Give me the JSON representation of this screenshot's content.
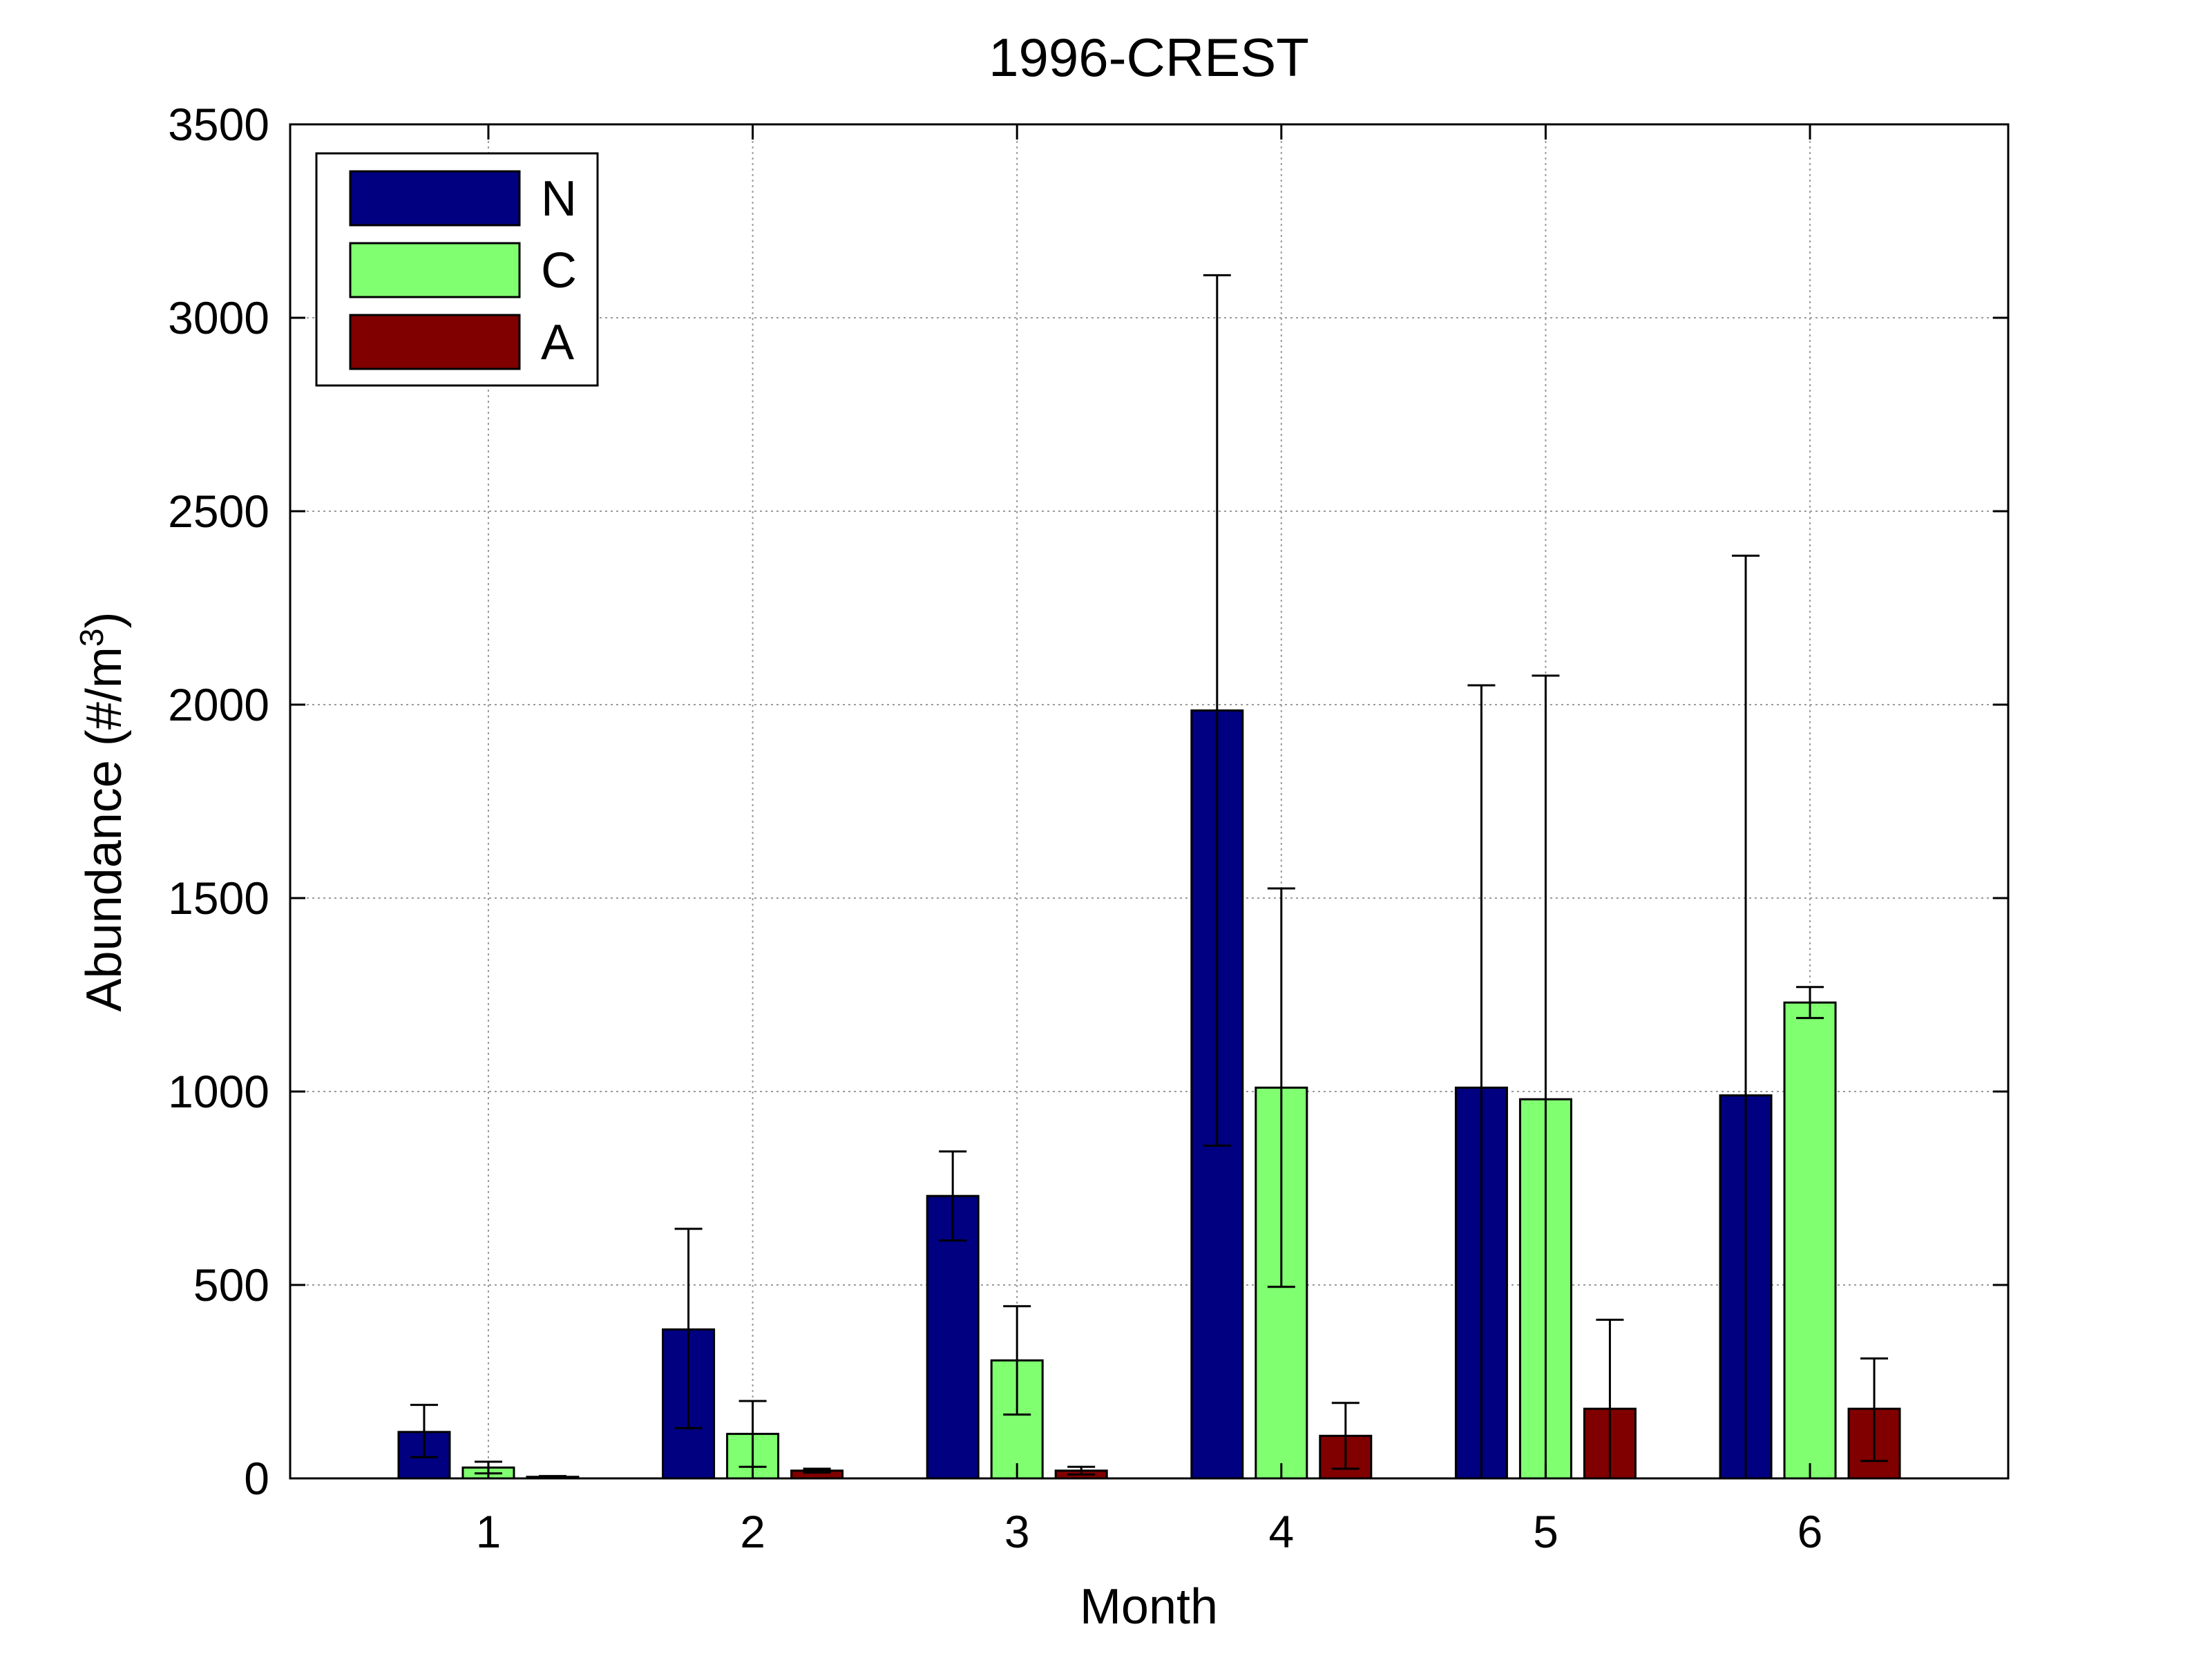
{
  "chart_data": {
    "type": "bar",
    "title": "1996-CREST",
    "xlabel": "Month",
    "ylabel_main": "Abundance (#/m",
    "ylabel_sup": "3",
    "ylabel_close": ")",
    "categories": [
      "1",
      "2",
      "3",
      "4",
      "5",
      "6"
    ],
    "ylim": [
      0,
      3500
    ],
    "yticks": [
      0,
      500,
      1000,
      1500,
      2000,
      2500,
      3000,
      3500
    ],
    "grid": true,
    "legend_position": "top-left",
    "series": [
      {
        "name": "N",
        "color": "#000080",
        "values": [
          120,
          385,
          730,
          1985,
          1010,
          990
        ],
        "error_low": [
          55,
          130,
          615,
          860,
          0,
          0
        ],
        "error_high": [
          190,
          645,
          845,
          3110,
          2050,
          2385
        ]
      },
      {
        "name": "C",
        "color": "#80ff70",
        "values": [
          28,
          115,
          305,
          1010,
          980,
          1230
        ],
        "error_low": [
          13,
          30,
          165,
          495,
          0,
          1190
        ],
        "error_high": [
          43,
          200,
          445,
          1525,
          2075,
          1270
        ]
      },
      {
        "name": "A",
        "color": "#800000",
        "values": [
          4,
          20,
          20,
          110,
          180,
          180
        ],
        "error_low": [
          2,
          15,
          10,
          25,
          0,
          45
        ],
        "error_high": [
          6,
          25,
          30,
          195,
          410,
          310
        ]
      }
    ]
  }
}
